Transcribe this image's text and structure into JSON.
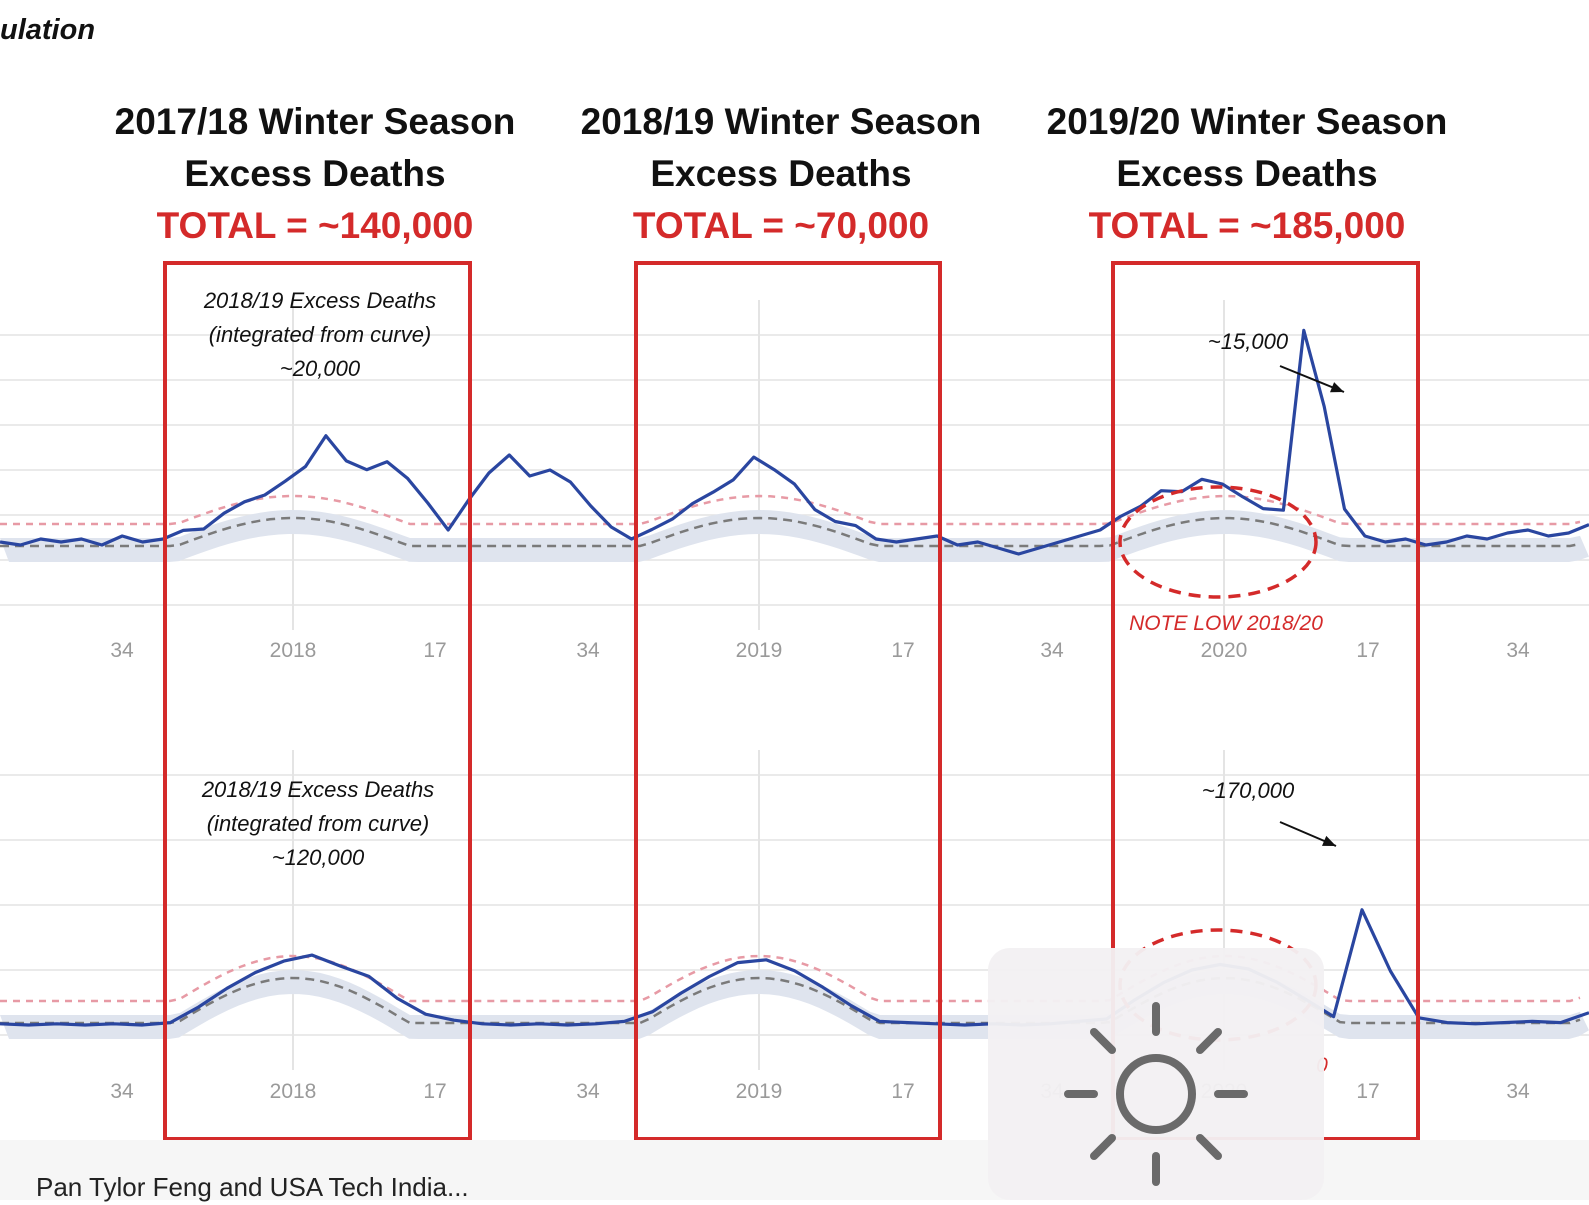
{
  "page": {
    "top_partial_text": "ulation",
    "footer_text": "Pan Tylor Feng and USA Tech India...",
    "overlay_icon": "brightness-sun-icon"
  },
  "colors": {
    "line": "#2a46a0",
    "box": "#d42a2a",
    "threshold": "#e79aa5",
    "baseline": "#7a7a7a",
    "band": "#dfe4ee",
    "grid": "#e4e4e4",
    "tick": "#9a9a9a"
  },
  "seasons": [
    {
      "title_line1": "2017/18 Winter Season",
      "title_line2": "Excess Deaths",
      "total": "TOTAL = ~140,000"
    },
    {
      "title_line1": "2018/19 Winter Season",
      "title_line2": "Excess Deaths",
      "total": "TOTAL = ~70,000"
    },
    {
      "title_line1": "2019/20 Winter Season",
      "title_line2": "Excess Deaths",
      "total": "TOTAL = ~185,000"
    }
  ],
  "annotations": {
    "top_left": [
      "2018/19 Excess Deaths",
      "(integrated from curve)",
      "~20,000"
    ],
    "bottom_left": [
      "2018/19 Excess Deaths",
      "(integrated from curve)",
      "~120,000"
    ],
    "top_peak": "~15,000",
    "bottom_peak": "~170,000",
    "note": "NOTE LOW 2018/20",
    "bottom_note_partial": "0"
  },
  "chart_data": [
    {
      "type": "line",
      "panel": "top",
      "x_ticks": [
        "34",
        "2018",
        "17",
        "34",
        "2019",
        "17",
        "34",
        "2020",
        "17",
        "34"
      ],
      "series": [
        {
          "values": [
            0.2,
            0.1,
            0.3,
            0.2,
            0.3,
            0.1,
            0.4,
            0.2,
            0.3,
            0.5,
            0.3,
            0.6,
            0.8,
            0.9,
            1.3,
            1.8,
            2.9,
            2.2,
            2.1,
            2.6,
            2.3,
            1.5,
            0.6,
            1.6,
            2.5,
            3.1,
            2.4,
            2.6,
            2.2,
            1.4,
            0.7,
            0.3,
            0.5,
            0.6,
            0.9,
            1.1,
            1.4,
            2.1,
            1.7,
            1.3,
            0.6,
            0.4,
            0.5,
            0.3,
            0.2,
            0.3,
            0.4,
            0.1,
            0.2,
            0.0,
            -0.2,
            0.0,
            0.2,
            0.4,
            0.6,
            0.9,
            1.0,
            1.3,
            1.1,
            1.4,
            1.2,
            0.8,
            0.5,
            0.6,
            6.8,
            4.5,
            1.3,
            0.4,
            0.2,
            0.3,
            0.1,
            0.2,
            0.4,
            0.3,
            0.5,
            0.6,
            0.4,
            0.5,
            0.6
          ]
        }
      ]
    },
    {
      "type": "line",
      "panel": "bottom",
      "x_ticks": [
        "34",
        "2018",
        "17",
        "34",
        "2019",
        "17",
        "34",
        "2020",
        "17",
        "34"
      ],
      "series": [
        {
          "values": [
            0.1,
            0.0,
            0.1,
            0.0,
            0.1,
            0.0,
            0.2,
            0.4,
            0.7,
            1.1,
            1.6,
            2.2,
            1.9,
            2.1,
            1.6,
            0.9,
            0.4,
            0.1,
            0.0,
            0.1,
            0.0,
            0.1,
            0.3,
            0.6,
            0.8,
            1.1,
            1.6,
            1.7,
            1.2,
            0.7,
            0.4,
            0.3,
            0.2,
            0.1,
            0.0,
            0.1,
            0.0,
            0.1,
            0.3,
            0.5,
            0.8,
            1.0,
            1.2,
            1.3,
            1.1,
            0.7,
            0.4,
            0.3,
            9.6,
            4.5,
            0.6,
            0.2,
            0.1,
            0.2,
            0.3,
            0.2,
            0.3
          ]
        }
      ]
    }
  ]
}
